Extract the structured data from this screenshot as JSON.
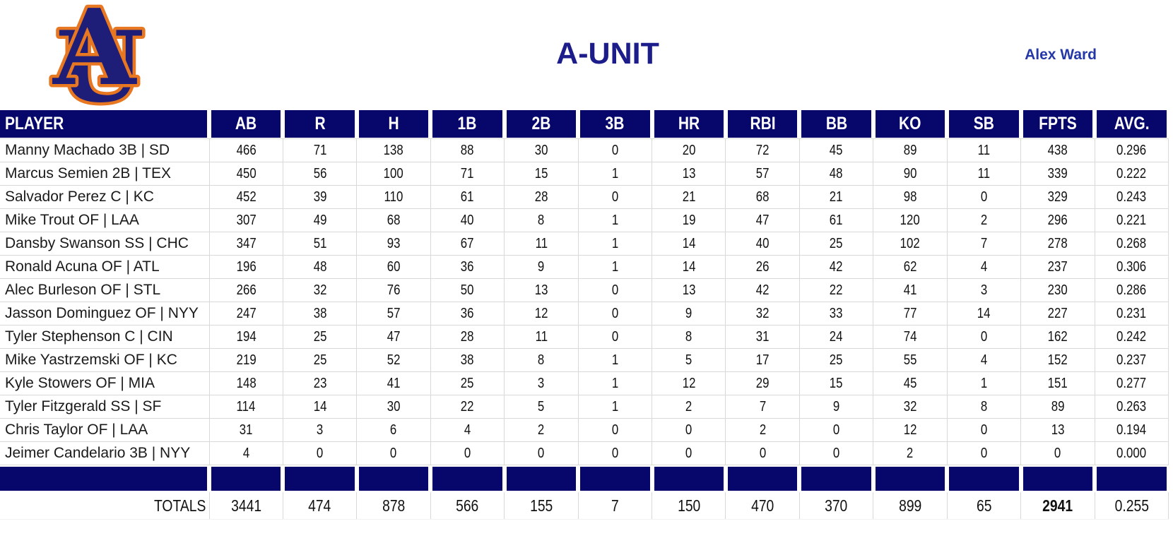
{
  "header": {
    "team_name": "A-UNIT",
    "owner_name": "Alex Ward",
    "logo": "auburn-au-logo"
  },
  "colors": {
    "header_navy": "#07076b",
    "title_blue": "#1c1c8a",
    "owner_blue": "#2438a8",
    "grid_line": "#d9d9d9",
    "logo_orange": "#e87722",
    "logo_navy": "#1e1e78"
  },
  "table": {
    "columns": [
      "PLAYER",
      "AB",
      "R",
      "H",
      "1B",
      "2B",
      "3B",
      "HR",
      "RBI",
      "BB",
      "KO",
      "SB",
      "FPTS",
      "AVG."
    ],
    "rows": [
      {
        "player": "Manny Machado 3B | SD",
        "stats": [
          "466",
          "71",
          "138",
          "88",
          "30",
          "0",
          "20",
          "72",
          "45",
          "89",
          "11",
          "438",
          "0.296"
        ]
      },
      {
        "player": "Marcus Semien 2B | TEX",
        "stats": [
          "450",
          "56",
          "100",
          "71",
          "15",
          "1",
          "13",
          "57",
          "48",
          "90",
          "11",
          "339",
          "0.222"
        ]
      },
      {
        "player": "Salvador Perez C | KC",
        "stats": [
          "452",
          "39",
          "110",
          "61",
          "28",
          "0",
          "21",
          "68",
          "21",
          "98",
          "0",
          "329",
          "0.243"
        ]
      },
      {
        "player": "Mike Trout OF | LAA",
        "stats": [
          "307",
          "49",
          "68",
          "40",
          "8",
          "1",
          "19",
          "47",
          "61",
          "120",
          "2",
          "296",
          "0.221"
        ]
      },
      {
        "player": "Dansby Swanson SS | CHC",
        "stats": [
          "347",
          "51",
          "93",
          "67",
          "11",
          "1",
          "14",
          "40",
          "25",
          "102",
          "7",
          "278",
          "0.268"
        ]
      },
      {
        "player": "Ronald Acuna OF | ATL",
        "stats": [
          "196",
          "48",
          "60",
          "36",
          "9",
          "1",
          "14",
          "26",
          "42",
          "62",
          "4",
          "237",
          "0.306"
        ]
      },
      {
        "player": "Alec Burleson OF | STL",
        "stats": [
          "266",
          "32",
          "76",
          "50",
          "13",
          "0",
          "13",
          "42",
          "22",
          "41",
          "3",
          "230",
          "0.286"
        ]
      },
      {
        "player": "Jasson Dominguez OF | NYY",
        "stats": [
          "247",
          "38",
          "57",
          "36",
          "12",
          "0",
          "9",
          "32",
          "33",
          "77",
          "14",
          "227",
          "0.231"
        ]
      },
      {
        "player": "Tyler Stephenson C | CIN",
        "stats": [
          "194",
          "25",
          "47",
          "28",
          "11",
          "0",
          "8",
          "31",
          "24",
          "74",
          "0",
          "162",
          "0.242"
        ]
      },
      {
        "player": "Mike Yastrzemski OF | KC",
        "stats": [
          "219",
          "25",
          "52",
          "38",
          "8",
          "1",
          "5",
          "17",
          "25",
          "55",
          "4",
          "152",
          "0.237"
        ]
      },
      {
        "player": "Kyle Stowers OF | MIA",
        "stats": [
          "148",
          "23",
          "41",
          "25",
          "3",
          "1",
          "12",
          "29",
          "15",
          "45",
          "1",
          "151",
          "0.277"
        ]
      },
      {
        "player": "Tyler Fitzgerald SS | SF",
        "stats": [
          "114",
          "14",
          "30",
          "22",
          "5",
          "1",
          "2",
          "7",
          "9",
          "32",
          "8",
          "89",
          "0.263"
        ]
      },
      {
        "player": "Chris Taylor OF | LAA",
        "stats": [
          "31",
          "3",
          "6",
          "4",
          "2",
          "0",
          "0",
          "2",
          "0",
          "12",
          "0",
          "13",
          "0.194"
        ]
      },
      {
        "player": "Jeimer Candelario 3B | NYY",
        "stats": [
          "4",
          "0",
          "0",
          "0",
          "0",
          "0",
          "0",
          "0",
          "0",
          "2",
          "0",
          "0",
          "0.000"
        ]
      }
    ],
    "totals": {
      "label": "TOTALS",
      "values": [
        "3441",
        "474",
        "878",
        "566",
        "155",
        "7",
        "150",
        "470",
        "370",
        "899",
        "65",
        "2941",
        "0.255"
      ],
      "bold_value": "2941"
    }
  }
}
